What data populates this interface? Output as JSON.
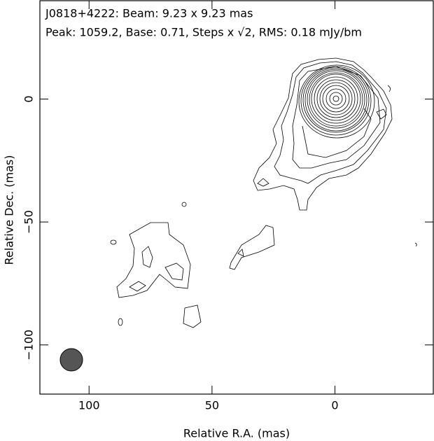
{
  "chart_data": {
    "type": "contour",
    "title": "J0818+4222: Beam: 9.23 x 9.23 mas",
    "subtitle": "Peak: 1059.2, Base: 0.71, Steps x √2, RMS: 0.18 mJy/bm",
    "x_label": "Relative R.A. (mas)",
    "y_label": "Relative Dec. (mas)",
    "xlim": [
      120,
      -40
    ],
    "ylim": [
      -120,
      40
    ],
    "xticks": [
      100,
      50,
      0
    ],
    "yticks": [
      0,
      {
        "value": -50,
        "label": "−50"
      },
      {
        "value": -100,
        "label": "−100"
      }
    ]
  }
}
